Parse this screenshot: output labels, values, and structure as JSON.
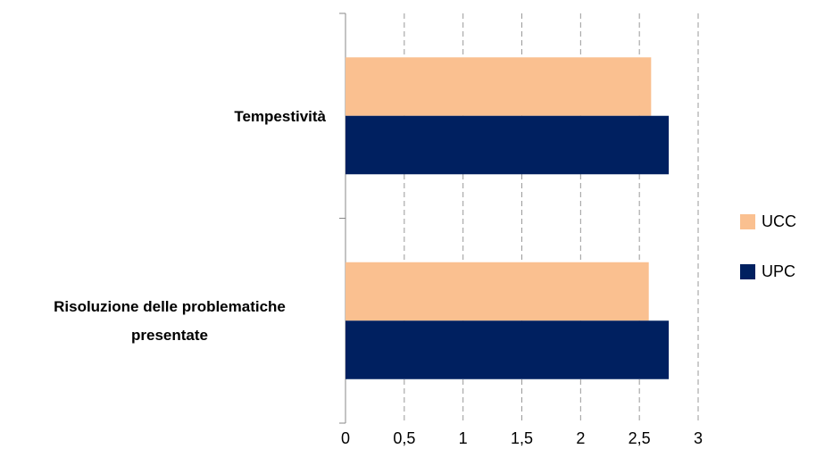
{
  "chart_data": {
    "type": "bar",
    "orientation": "horizontal",
    "categories": [
      "Tempestività",
      "Risoluzione delle problematiche presentate"
    ],
    "series": [
      {
        "name": "UCC",
        "color": "#fac090",
        "values": [
          2.6,
          2.58
        ]
      },
      {
        "name": "UPC",
        "color": "#002060",
        "values": [
          2.75,
          2.75
        ]
      }
    ],
    "xlim": [
      0,
      3
    ],
    "xticks": [
      0,
      {
        "value": 0.5,
        "label": "0,5"
      },
      1,
      {
        "value": 1.5,
        "label": "1,5"
      },
      2,
      {
        "value": 2.5,
        "label": "2,5"
      },
      3
    ],
    "grid": true,
    "legend": "right"
  }
}
